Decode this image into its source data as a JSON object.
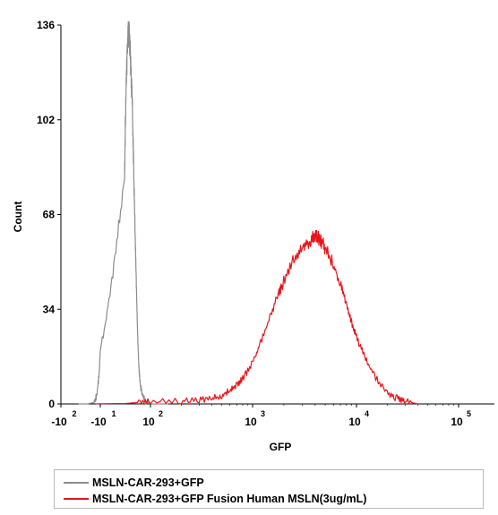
{
  "chart_data": {
    "type": "area",
    "xlabel": "GFP",
    "ylabel": "Count",
    "xscale": "biexponential (log above ~10^2)",
    "xlim": [
      -150,
      100000
    ],
    "ylim": [
      0,
      136
    ],
    "yticks": [
      0,
      34,
      68,
      102,
      136
    ],
    "xticks": [
      {
        "base": "-10",
        "exp": "2",
        "value": -100
      },
      {
        "base": "-10",
        "exp": "1",
        "value": -10
      },
      {
        "base": "10",
        "exp": "2",
        "value": 100
      },
      {
        "base": "10",
        "exp": "3",
        "value": 1000
      },
      {
        "base": "10",
        "exp": "4",
        "value": 10000
      },
      {
        "base": "10",
        "exp": "5",
        "value": 100000
      }
    ],
    "series": [
      {
        "name": "MSLN-CAR-293+GFP",
        "color": "#8c8c8c",
        "x": [
          -60,
          -40,
          -25,
          -18,
          -12,
          -8,
          -4,
          0,
          4,
          8,
          12,
          16,
          20,
          25,
          30,
          35,
          40,
          45,
          50,
          55,
          60,
          70,
          80,
          100,
          150
        ],
        "y": [
          0,
          0,
          0.5,
          3,
          12,
          28,
          52,
          80,
          104,
          120,
          131,
          134,
          130,
          120,
          108,
          85,
          65,
          45,
          26,
          14,
          7,
          3,
          1,
          0,
          0
        ]
      },
      {
        "name": "MSLN-CAR-293+GFP Fusion Human MSLN(3ug/mL)",
        "color": "#e8141b",
        "x": [
          -20,
          50,
          100,
          200,
          300,
          400,
          500,
          600,
          700,
          800,
          1000,
          1200,
          1500,
          1800,
          2000,
          2500,
          3000,
          3500,
          4000,
          4500,
          5000,
          6000,
          7000,
          8000,
          9000,
          10000,
          12000,
          15000,
          20000,
          25000,
          30000,
          40000
        ],
        "y": [
          0,
          0.5,
          0.8,
          1,
          1.5,
          2,
          3,
          5,
          7,
          9,
          15,
          22,
          32,
          40,
          44,
          52,
          56,
          58,
          61,
          59,
          56,
          50,
          43,
          36,
          29,
          24,
          17,
          10,
          4,
          2,
          1,
          0
        ]
      }
    ],
    "legend": {
      "placement": "bottom",
      "entries": [
        {
          "label": "MSLN-CAR-293+GFP",
          "color": "#8c8c8c"
        },
        {
          "label": "MSLN-CAR-293+GFP Fusion Human MSLN(3ug/mL)",
          "color": "#e8141b"
        }
      ]
    }
  }
}
